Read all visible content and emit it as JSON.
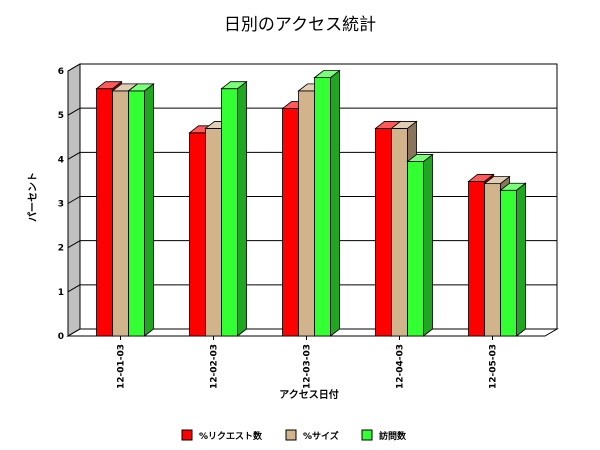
{
  "chart_data": {
    "type": "bar",
    "title": "日別のアクセス統計",
    "xlabel": "アクセス日付",
    "ylabel": "パーセント",
    "categories": [
      "12-01-03",
      "12-02-03",
      "12-03-03",
      "12-04-03",
      "12-05-03"
    ],
    "series": [
      {
        "name": "%リクエスト数",
        "color": "#ff0000",
        "values": [
          5.6,
          4.6,
          5.15,
          4.7,
          3.5
        ]
      },
      {
        "name": "%サイズ",
        "color": "#d2b48c",
        "values": [
          5.55,
          4.7,
          5.55,
          4.7,
          3.45
        ]
      },
      {
        "name": "訪問数",
        "color": "#33ff33",
        "values": [
          5.55,
          5.6,
          5.85,
          3.95,
          3.3
        ]
      }
    ],
    "yticks": [
      "0",
      "1",
      "2",
      "3",
      "4",
      "5",
      "6"
    ],
    "ylim": [
      0,
      6
    ],
    "grid": true,
    "legend_position": "bottom"
  }
}
